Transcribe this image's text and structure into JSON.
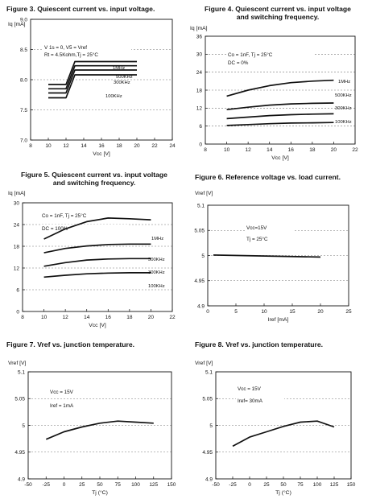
{
  "chart_data": [
    {
      "type": "line",
      "title": "Figure 3. Quiescent current vs. input voltage.",
      "xlabel": "Vcc  [V]",
      "ylabel": "Iq  [mA]",
      "xlim": [
        8,
        24
      ],
      "ylim": [
        7.0,
        9.0
      ],
      "xticks": [
        8,
        10,
        12,
        14,
        16,
        18,
        20,
        22,
        24
      ],
      "yticks": [
        7.0,
        7.5,
        8.0,
        8.5,
        9.0
      ],
      "ytick_labels": [
        "7.0",
        "7.5",
        "8.0",
        "8.5",
        "9.0"
      ],
      "grid": true,
      "annotations": [
        "V 1s = 0, V5 = Vref",
        "Rt = 4.5Kohm,Tj = 25°C"
      ],
      "series": [
        {
          "name": "1MHz",
          "x": [
            10,
            12,
            13,
            20
          ],
          "y": [
            7.92,
            7.92,
            8.3,
            8.3
          ]
        },
        {
          "name": "500KHz",
          "x": [
            10,
            12,
            13,
            20
          ],
          "y": [
            7.85,
            7.85,
            8.23,
            8.23
          ]
        },
        {
          "name": "300KHz",
          "x": [
            10,
            12,
            13,
            20
          ],
          "y": [
            7.78,
            7.78,
            8.16,
            8.16
          ]
        },
        {
          "name": "100KHz",
          "x": [
            10,
            12,
            13,
            20
          ],
          "y": [
            7.7,
            7.7,
            8.08,
            8.08
          ]
        }
      ],
      "series_labels": [
        "1MHz",
        "500KHz",
        "300KHz",
        "100KHz"
      ]
    },
    {
      "type": "line",
      "title": "Figure 4. Quiescent current vs. input voltage and switching frequency.",
      "title_lines": [
        "Figure 4. Quiescent current vs. input voltage",
        "and switching frequency."
      ],
      "xlabel": "Vcc  [V]",
      "ylabel": "Iq  [mA]",
      "xlim": [
        8,
        22
      ],
      "ylim": [
        0,
        36
      ],
      "xticks": [
        8,
        10,
        12,
        14,
        16,
        18,
        20,
        22
      ],
      "yticks": [
        0,
        6,
        12,
        18,
        24,
        30,
        36
      ],
      "grid": true,
      "annotations": [
        "Co = 1nF, Tj = 25°C",
        "DC = 0%"
      ],
      "series": [
        {
          "name": "1MHz",
          "x": [
            10,
            12,
            14,
            16,
            18,
            20
          ],
          "y": [
            16.0,
            18.0,
            19.5,
            20.5,
            21.0,
            21.3
          ]
        },
        {
          "name": "500KHz",
          "x": [
            10,
            12,
            14,
            16,
            18,
            20
          ],
          "y": [
            11.5,
            12.3,
            13.0,
            13.4,
            13.6,
            13.7
          ]
        },
        {
          "name": "300KHz",
          "x": [
            10,
            12,
            14,
            16,
            18,
            20
          ],
          "y": [
            8.5,
            9.0,
            9.5,
            9.8,
            10.0,
            10.1
          ]
        },
        {
          "name": "100KHz",
          "x": [
            10,
            12,
            14,
            16,
            18,
            20
          ],
          "y": [
            6.2,
            6.5,
            6.8,
            7.0,
            7.1,
            7.2
          ]
        }
      ],
      "series_labels": [
        "1MHz",
        "500KHz",
        "300KHz",
        "100KHz"
      ]
    },
    {
      "type": "line",
      "title": "Figure 5. Quiescent current vs. input voltage and switching frequency.",
      "title_lines": [
        "Figure 5. Quiescent current vs. input voltage",
        "and switching frequency."
      ],
      "xlabel": "Vcc  [V]",
      "ylabel": "Iq  [mA]",
      "xlim": [
        8,
        22
      ],
      "ylim": [
        0,
        30
      ],
      "xticks": [
        8,
        10,
        12,
        14,
        16,
        18,
        20,
        22
      ],
      "yticks": [
        0,
        6,
        12,
        18,
        24,
        30
      ],
      "grid": true,
      "annotations": [
        "Co = 1nF, Tj = 25°C",
        "DC = 100%"
      ],
      "series": [
        {
          "name": "1MHz",
          "x": [
            10,
            12,
            14,
            16,
            18,
            20
          ],
          "y": [
            20.0,
            22.8,
            24.8,
            25.8,
            25.6,
            25.3
          ]
        },
        {
          "name": "500KHz",
          "x": [
            10,
            12,
            14,
            16,
            18,
            20
          ],
          "y": [
            16.2,
            17.4,
            18.1,
            18.5,
            18.6,
            18.6
          ]
        },
        {
          "name": "300KHz",
          "x": [
            10,
            12,
            14,
            16,
            18,
            20
          ],
          "y": [
            12.5,
            13.5,
            14.2,
            14.5,
            14.6,
            14.6
          ]
        },
        {
          "name": "100KHz",
          "x": [
            10,
            12,
            14,
            16,
            18,
            20
          ],
          "y": [
            9.5,
            10.0,
            10.4,
            10.6,
            10.7,
            10.7
          ]
        }
      ],
      "series_labels": [
        "1MHz",
        "500KHz",
        "300KHz",
        "100KHz"
      ]
    },
    {
      "type": "line",
      "title": "Figure 6. Reference voltage vs. load current.",
      "xlabel": "Iref  [mA]",
      "ylabel": "Vref  [V]",
      "xlim": [
        0,
        25
      ],
      "ylim": [
        4.9,
        5.1
      ],
      "xticks": [
        0,
        5,
        10,
        15,
        20,
        25
      ],
      "yticks": [
        4.9,
        4.95,
        5.0,
        5.05,
        5.1
      ],
      "ytick_labels": [
        "4.9",
        "4.95",
        "5",
        "5.05",
        "5.1"
      ],
      "grid": true,
      "annotations": [
        "Vcc=15V",
        "Tj = 25°C"
      ],
      "series": [
        {
          "name": "",
          "x": [
            1,
            20
          ],
          "y": [
            5.001,
            4.997
          ]
        }
      ],
      "series_labels": []
    },
    {
      "type": "line",
      "title": "Figure 7. Vref vs. junction temperature.",
      "xlabel": "Tj (°C)",
      "ylabel": "Vref [V]",
      "xlim": [
        -50,
        150
      ],
      "ylim": [
        4.9,
        5.1
      ],
      "xticks": [
        -50,
        -25,
        0,
        25,
        50,
        75,
        100,
        125,
        150
      ],
      "yticks": [
        4.9,
        4.95,
        5.0,
        5.05,
        5.1
      ],
      "ytick_labels": [
        "4.9",
        "4.95",
        "5",
        "5.05",
        "5.1"
      ],
      "grid": true,
      "annotations": [
        "Vcc = 15V",
        "Iref = 1mA"
      ],
      "series": [
        {
          "name": "",
          "x": [
            -25,
            0,
            25,
            50,
            75,
            100,
            125
          ],
          "y": [
            4.974,
            4.988,
            4.997,
            5.004,
            5.008,
            5.006,
            5.004
          ]
        }
      ],
      "series_labels": []
    },
    {
      "type": "line",
      "title": "Figure 8. Vref vs. junction temperature.",
      "xlabel": "Tj (°C)",
      "ylabel": "Vref [V]",
      "xlim": [
        -50,
        150
      ],
      "ylim": [
        4.9,
        5.1
      ],
      "xticks": [
        -50,
        -25,
        0,
        25,
        50,
        75,
        100,
        125,
        150
      ],
      "yticks": [
        4.9,
        4.95,
        5.0,
        5.05,
        5.1
      ],
      "ytick_labels": [
        "4.9",
        "4.95",
        "5",
        "5.05",
        "5.1"
      ],
      "grid": true,
      "annotations": [
        "Vcc = 15V",
        "Iref= 30mA"
      ],
      "series": [
        {
          "name": "",
          "x": [
            -25,
            0,
            25,
            50,
            75,
            100,
            125
          ],
          "y": [
            4.961,
            4.978,
            4.988,
            4.998,
            5.006,
            5.008,
            4.997
          ]
        }
      ],
      "series_labels": []
    }
  ]
}
